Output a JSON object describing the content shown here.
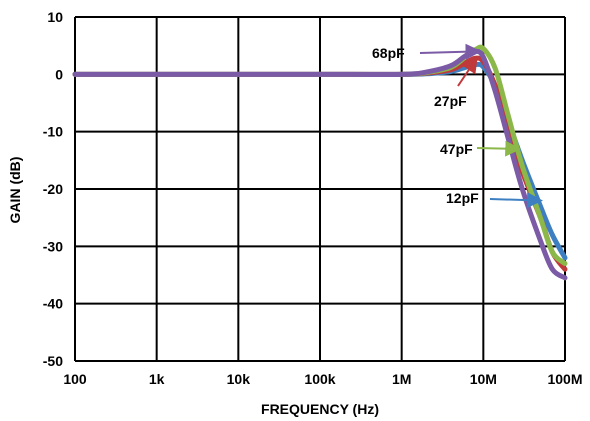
{
  "chart_data": {
    "type": "line",
    "xlabel": "FREQUENCY (Hz)",
    "ylabel": "GAIN (dB)",
    "x_scale": "log",
    "xlim": [
      100,
      100000000
    ],
    "ylim": [
      -50,
      10
    ],
    "grid": true,
    "x_ticks": [
      {
        "value": 100,
        "label": "100"
      },
      {
        "value": 1000,
        "label": "1k"
      },
      {
        "value": 10000,
        "label": "10k"
      },
      {
        "value": 100000,
        "label": "100k"
      },
      {
        "value": 1000000,
        "label": "1M"
      },
      {
        "value": 10000000,
        "label": "10M"
      },
      {
        "value": 100000000,
        "label": "100M"
      }
    ],
    "y_ticks": [
      {
        "value": 10,
        "label": "10"
      },
      {
        "value": 0,
        "label": "0"
      },
      {
        "value": -10,
        "label": "-10"
      },
      {
        "value": -20,
        "label": "-20"
      },
      {
        "value": -30,
        "label": "-30"
      },
      {
        "value": -40,
        "label": "-40"
      },
      {
        "value": -50,
        "label": "-50"
      }
    ],
    "series": [
      {
        "name": "12pF",
        "color": "#3d7fc1",
        "x": [
          100,
          1000,
          10000,
          100000,
          1000000,
          2000000,
          4000000,
          6000000,
          8000000,
          10000000,
          14000000,
          20000000,
          30000000,
          50000000,
          70000000,
          100000000
        ],
        "y": [
          0,
          0,
          0,
          0,
          0,
          0.1,
          0.5,
          1.2,
          1.7,
          1.3,
          -2,
          -8,
          -15,
          -23,
          -28,
          -32
        ]
      },
      {
        "name": "27pF",
        "color": "#c0393b",
        "x": [
          100,
          1000,
          10000,
          100000,
          1000000,
          2000000,
          4000000,
          6000000,
          8000000,
          10000000,
          14000000,
          20000000,
          30000000,
          50000000,
          70000000,
          100000000
        ],
        "y": [
          0,
          0,
          0,
          0,
          0,
          0.2,
          0.8,
          2,
          2.8,
          2.2,
          -2,
          -9,
          -17,
          -25,
          -31,
          -34
        ]
      },
      {
        "name": "47pF",
        "color": "#8cb84a",
        "x": [
          100,
          1000,
          10000,
          100000,
          1000000,
          2000000,
          4000000,
          6000000,
          8000000,
          10000000,
          14000000,
          20000000,
          30000000,
          50000000,
          70000000,
          100000000
        ],
        "y": [
          0,
          0,
          0,
          0,
          0,
          0.3,
          1.2,
          3,
          4.3,
          4.5,
          1,
          -7,
          -16,
          -25,
          -31,
          -33
        ]
      },
      {
        "name": "68pF",
        "color": "#7b5aa6",
        "x": [
          100,
          1000,
          10000,
          100000,
          1000000,
          2000000,
          4000000,
          6000000,
          8000000,
          10000000,
          14000000,
          20000000,
          30000000,
          50000000,
          70000000,
          100000000
        ],
        "y": [
          0,
          0,
          0,
          0,
          0,
          0.4,
          1.5,
          3.2,
          4,
          3,
          -3,
          -11,
          -20,
          -29,
          -34,
          -35.5
        ]
      }
    ],
    "annotations": [
      {
        "text": "68pF",
        "series": "68pF",
        "color": "#7b5aa6",
        "point_to": {
          "x": 8500000,
          "y": 4
        }
      },
      {
        "text": "27pF",
        "series": "27pF",
        "color": "#c0393b",
        "point_to": {
          "x": 8000000,
          "y": 2.5
        }
      },
      {
        "text": "47pF",
        "series": "47pF",
        "color": "#8cb84a",
        "point_to": {
          "x": 26000000,
          "y": -13
        }
      },
      {
        "text": "12pF",
        "series": "12pF",
        "color": "#3d7fc1",
        "point_to": {
          "x": 48000000,
          "y": -22
        }
      }
    ]
  }
}
